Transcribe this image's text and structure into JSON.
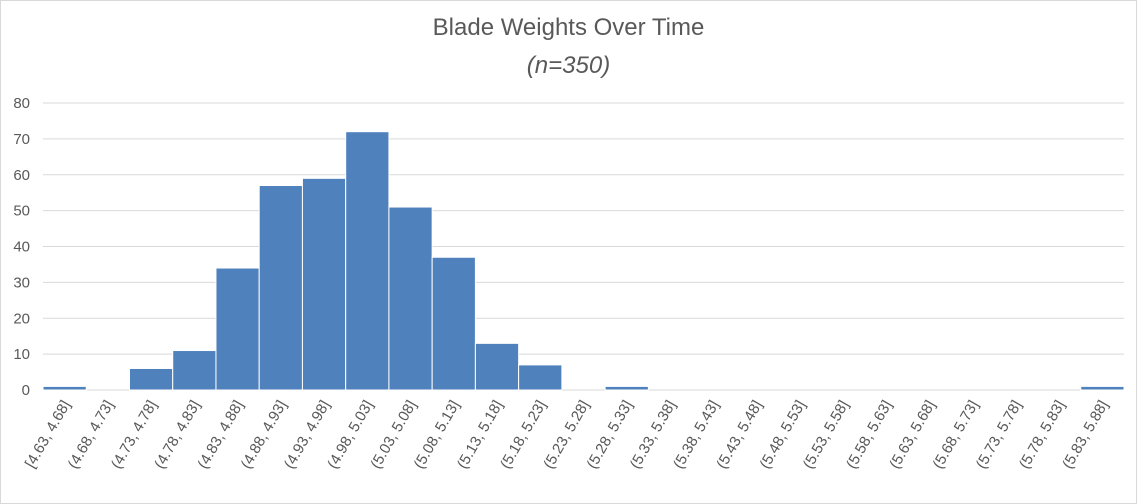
{
  "chart_data": {
    "type": "bar",
    "title": "Blade Weights Over Time",
    "subtitle": "(n=350)",
    "xlabel": "",
    "ylabel": "",
    "ylim": [
      0,
      80
    ],
    "yticks": [
      0,
      10,
      20,
      30,
      40,
      50,
      60,
      70,
      80
    ],
    "grid": true,
    "categories": [
      "[4.63, 4.68]",
      "(4.68, 4.73]",
      "(4.73, 4.78]",
      "(4.78, 4.83]",
      "(4.83, 4.88]",
      "(4.88, 4.93]",
      "(4.93, 4.98]",
      "(4.98, 5.03]",
      "(5.03, 5.08]",
      "(5.08, 5.13]",
      "(5.13, 5.18]",
      "(5.18, 5.23]",
      "(5.23, 5.28]",
      "(5.28, 5.33]",
      "(5.33, 5.38]",
      "(5.38, 5.43]",
      "(5.43, 5.48]",
      "(5.48, 5.53]",
      "(5.53, 5.58]",
      "(5.58, 5.63]",
      "(5.63, 5.68]",
      "(5.68, 5.73]",
      "(5.73, 5.78]",
      "(5.78, 5.83]",
      "(5.83, 5.88]"
    ],
    "values": [
      1,
      0,
      6,
      11,
      34,
      57,
      59,
      72,
      51,
      37,
      13,
      7,
      0,
      1,
      0,
      0,
      0,
      0,
      0,
      0,
      0,
      0,
      0,
      0,
      1
    ],
    "colors": {
      "bar": "#4f81bd",
      "grid": "#d9d9d9",
      "text": "#595959"
    }
  }
}
